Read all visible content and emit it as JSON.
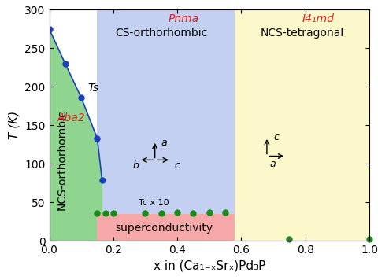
{
  "chart_data": {
    "type": "phase_diagram",
    "xlabel": "x in (Ca₁₋ₓSrₓ)Pd₃P",
    "ylabel": "T (K)",
    "xlim": [
      0.0,
      1.0
    ],
    "ylim": [
      0,
      300
    ],
    "xticks": [
      0.0,
      0.2,
      0.4,
      0.6,
      0.8,
      1.0
    ],
    "yticks": [
      0,
      50,
      100,
      150,
      200,
      250,
      300
    ],
    "series": [
      {
        "name": "Ts",
        "type": "line",
        "color": "#1a3fbf",
        "marker": "circle",
        "x": [
          0.0,
          0.05,
          0.1,
          0.15,
          0.165
        ],
        "values": [
          275,
          230,
          186,
          133,
          79
        ]
      },
      {
        "name": "Tc x 10",
        "type": "scatter",
        "color": "#1a8a1a",
        "marker": "circle",
        "x": [
          0.15,
          0.175,
          0.2,
          0.3,
          0.35,
          0.4,
          0.45,
          0.5,
          0.55,
          0.75,
          1.0
        ],
        "values": [
          36,
          36,
          36,
          36,
          36,
          37,
          36,
          37,
          37,
          2,
          2
        ]
      }
    ],
    "regions": [
      {
        "name": "CS-orthorhombic",
        "space_group": "Pnma",
        "x": [
          0.15,
          0.58
        ],
        "color": "#c3d0f2"
      },
      {
        "name": "NCS-tetragonal",
        "space_group": "I4₁md",
        "x": [
          0.58,
          1.0
        ],
        "color": "#fcf8cc"
      },
      {
        "name": "NCS-orthorhombic",
        "space_group": "Aba2",
        "x": [
          0.0,
          0.165
        ],
        "color": "#8fd48f"
      },
      {
        "name": "superconductivity",
        "x": [
          0.15,
          0.58
        ],
        "y": [
          0,
          35
        ],
        "color": "#f7a8a8"
      }
    ],
    "axes_labels": [
      [
        "a",
        "b",
        "c"
      ],
      [
        "c",
        "a"
      ]
    ]
  }
}
